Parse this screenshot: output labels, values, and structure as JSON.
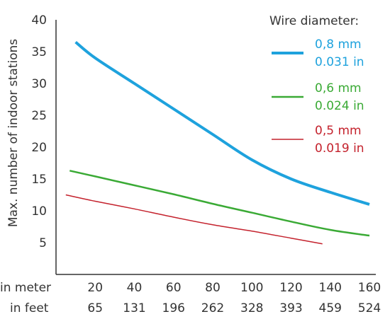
{
  "chart_data": {
    "type": "line",
    "ylabel": "Max. number of indoor stations",
    "xlabel_rows": [
      "in meter",
      "in feet"
    ],
    "x_ticks_m": [
      20,
      40,
      60,
      80,
      100,
      120,
      140,
      160
    ],
    "x_ticks_ft": [
      "65",
      "131",
      "196",
      "262",
      "328",
      "393",
      "459",
      "524"
    ],
    "y_ticks": [
      5,
      10,
      15,
      20,
      25,
      30,
      35,
      40
    ],
    "xlim": [
      0,
      160
    ],
    "ylim": [
      0,
      40
    ],
    "legend_title": "Wire diameter:",
    "legend_position": "top-right",
    "series": [
      {
        "name": "0,8 mm / 0.031 in",
        "label_mm": "0,8 mm",
        "label_in": "0.031 in",
        "color": "#1ea2dd",
        "x": [
          10,
          20,
          40,
          60,
          80,
          100,
          120,
          140,
          160
        ],
        "y": [
          36.5,
          34,
          30,
          26,
          22,
          18,
          15,
          12.9,
          11
        ]
      },
      {
        "name": "0,6 mm / 0.024 in",
        "label_mm": "0,6 mm",
        "label_in": "0.024 in",
        "color": "#3aaa35",
        "x": [
          7,
          20,
          40,
          60,
          80,
          100,
          120,
          140,
          160
        ],
        "y": [
          16.3,
          15.4,
          14,
          12.6,
          11.1,
          9.7,
          8.3,
          7,
          6.1
        ]
      },
      {
        "name": "0,5 mm / 0.019 in",
        "label_mm": "0,5 mm",
        "label_in": "0.019 in",
        "color": "#c4222d",
        "x": [
          5,
          20,
          40,
          60,
          80,
          100,
          120,
          136
        ],
        "y": [
          12.5,
          11.5,
          10.3,
          9,
          7.8,
          6.8,
          5.7,
          4.8
        ]
      }
    ]
  }
}
